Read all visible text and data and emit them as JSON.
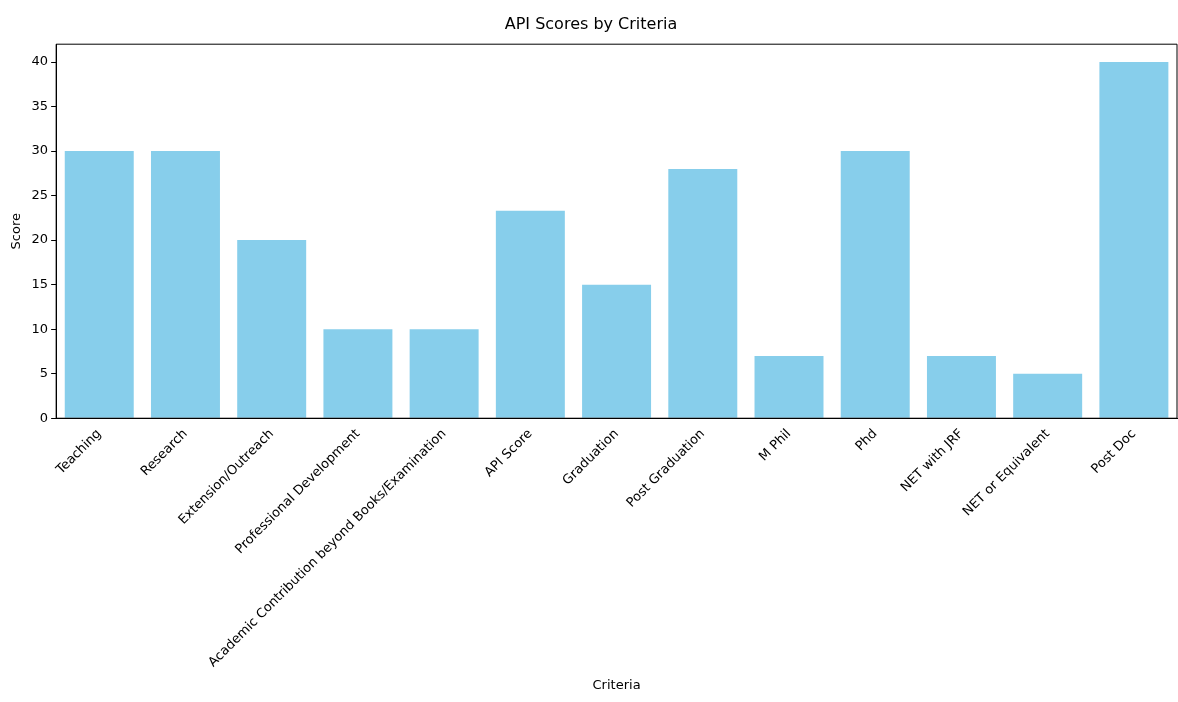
{
  "chart_data": {
    "type": "bar",
    "title": "API Scores by Criteria",
    "xlabel": "Criteria",
    "ylabel": "Score",
    "categories": [
      "Teaching",
      "Research",
      "Extension/Outreach",
      "Professional Development",
      "Academic Contribution beyond Books/Examination",
      "API Score",
      "Graduation",
      "Post Graduation",
      "M Phil",
      "Phd",
      "NET with JRF",
      "NET or Equivalent",
      "Post Doc"
    ],
    "values": [
      30,
      30,
      20,
      10,
      10,
      23.3,
      15,
      28,
      7,
      30,
      7,
      5,
      40
    ],
    "color": "#87ceeb",
    "ylim": [
      0,
      42
    ],
    "yticks": [
      0,
      5,
      10,
      15,
      20,
      25,
      30,
      35,
      40
    ],
    "grid": false
  }
}
